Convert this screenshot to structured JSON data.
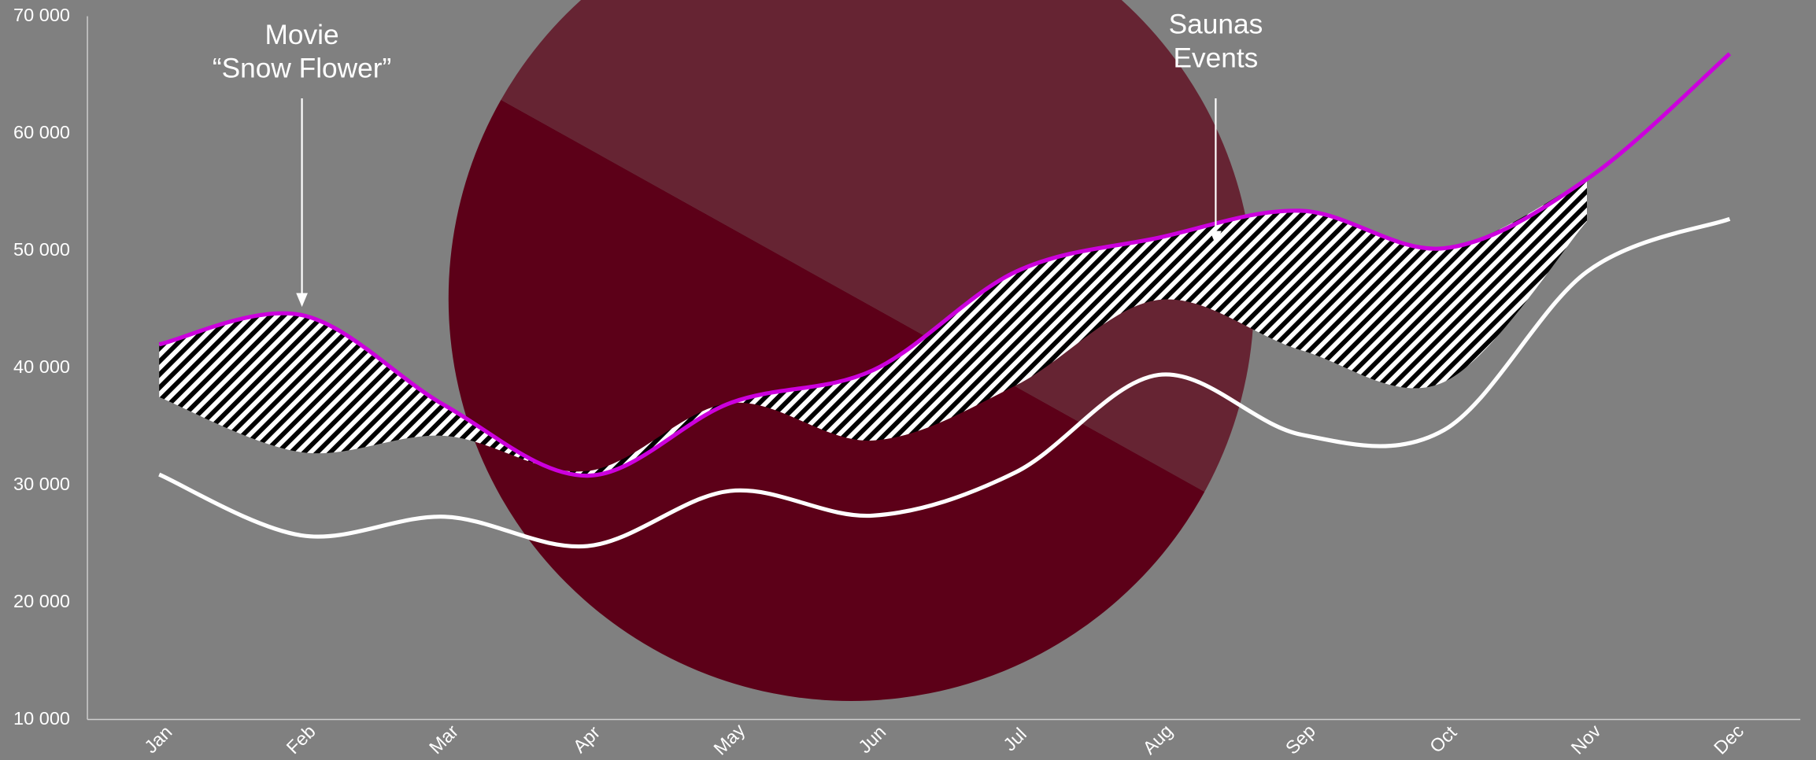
{
  "chart_data": {
    "type": "line",
    "categories": [
      "Jan",
      "Feb",
      "Mar",
      "Apr",
      "May",
      "Jun",
      "Jul",
      "Aug",
      "Sep",
      "Oct",
      "Nov",
      "Dec"
    ],
    "series": [
      {
        "color": "#cc00dd",
        "values": [
          42000,
          44500,
          36800,
          30800,
          37000,
          39800,
          48200,
          51100,
          53400,
          50200,
          56100,
          66800
        ]
      },
      {
        "color": "#ffffff",
        "values": [
          30900,
          25700,
          27300,
          24800,
          29500,
          27400,
          31100,
          39400,
          34300,
          34700,
          48200,
          52700
        ]
      }
    ],
    "band_lower": [
      37500,
      32800,
      34200,
      31200,
      37000,
      33800,
      38500,
      45800,
      41500,
      38800,
      52500,
      null
    ],
    "ylim": [
      10000,
      70000
    ],
    "yticks": [
      {
        "value": 10000,
        "label": "10 000"
      },
      {
        "value": 20000,
        "label": "20 000"
      },
      {
        "value": 30000,
        "label": "30 000"
      },
      {
        "value": 40000,
        "label": "40 000"
      },
      {
        "value": 50000,
        "label": "50 000"
      },
      {
        "value": 60000,
        "label": "60 000"
      },
      {
        "value": 70000,
        "label": "70 000"
      }
    ],
    "annotations": [
      {
        "lines": [
          "Movie",
          "“Snow Flower”"
        ],
        "category": 1,
        "value": 45200
      },
      {
        "lines": [
          "Saunas",
          "Events"
        ],
        "category": 7.4,
        "value": 50500
      }
    ]
  }
}
